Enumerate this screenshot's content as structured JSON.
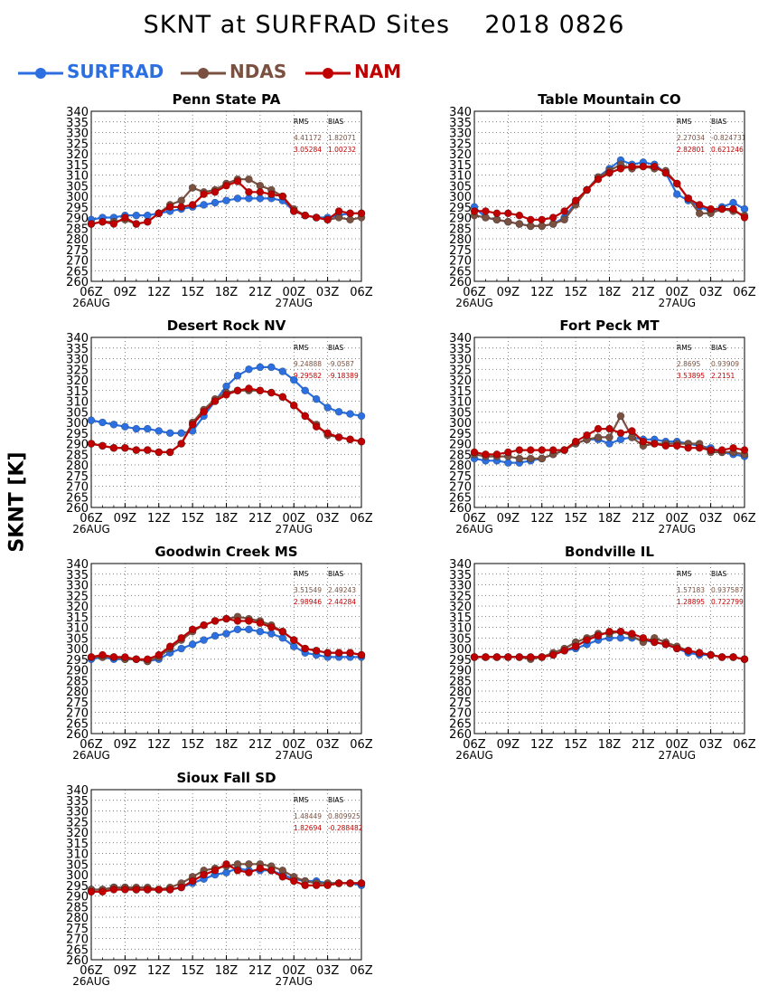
{
  "title": "SKNT at SURFRAD Sites    2018 0826",
  "ylabel": "SKNT [K]",
  "colors": {
    "SURFRAD": "#2b6fe0",
    "NDAS": "#7a5040",
    "NAM": "#c00000"
  },
  "legend": [
    {
      "name": "SURFRAD",
      "color": "#2b6fe0"
    },
    {
      "name": "NDAS",
      "color": "#7a5040"
    },
    {
      "name": "NAM",
      "color": "#c00000"
    }
  ],
  "chart_data": [
    {
      "type": "line",
      "title": "Penn State PA",
      "x": [
        "06Z",
        "07Z",
        "08Z",
        "09Z",
        "10Z",
        "11Z",
        "12Z",
        "13Z",
        "14Z",
        "15Z",
        "16Z",
        "17Z",
        "18Z",
        "19Z",
        "20Z",
        "21Z",
        "22Z",
        "23Z",
        "00Z",
        "01Z",
        "02Z",
        "03Z",
        "04Z",
        "05Z",
        "06Z"
      ],
      "xticks": [
        "06Z",
        "09Z",
        "12Z",
        "15Z",
        "18Z",
        "21Z",
        "00Z",
        "03Z",
        "06Z"
      ],
      "date_labels": [
        "26AUG",
        "27AUG"
      ],
      "ylim": [
        260,
        340
      ],
      "yticks": [
        260,
        265,
        270,
        275,
        280,
        285,
        290,
        295,
        300,
        305,
        310,
        315,
        320,
        325,
        330,
        335,
        340
      ],
      "grid": true,
      "stats": {
        "header": [
          "RMS",
          "BIAS"
        ],
        "NDAS": [
          "4.41172",
          "1.82071"
        ],
        "NAM": [
          "3.05284",
          "1.00232"
        ]
      },
      "series": [
        {
          "name": "SURFRAD",
          "values": [
            289,
            290,
            290,
            291,
            291,
            291,
            292,
            293,
            294,
            295,
            296,
            297,
            298,
            299,
            299,
            299,
            299,
            298,
            293,
            291,
            290,
            290,
            291,
            292,
            292
          ]
        },
        {
          "name": "NDAS",
          "values": [
            287,
            288,
            288,
            289,
            287,
            288,
            292,
            296,
            298,
            304,
            302,
            303,
            306,
            308,
            308,
            305,
            303,
            300,
            294,
            291,
            290,
            289,
            290,
            289,
            290
          ]
        },
        {
          "name": "NAM",
          "values": [
            287,
            288,
            287,
            290,
            287,
            288,
            292,
            295,
            295,
            296,
            301,
            302,
            305,
            307,
            302,
            302,
            301,
            300,
            293,
            291,
            290,
            289,
            293,
            292,
            292
          ]
        }
      ]
    },
    {
      "type": "line",
      "title": "Table Mountain CO",
      "x": [
        "06Z",
        "07Z",
        "08Z",
        "09Z",
        "10Z",
        "11Z",
        "12Z",
        "13Z",
        "14Z",
        "15Z",
        "16Z",
        "17Z",
        "18Z",
        "19Z",
        "20Z",
        "21Z",
        "22Z",
        "23Z",
        "00Z",
        "01Z",
        "02Z",
        "03Z",
        "04Z",
        "05Z",
        "06Z"
      ],
      "xticks": [
        "06Z",
        "09Z",
        "12Z",
        "15Z",
        "18Z",
        "21Z",
        "00Z",
        "03Z",
        "06Z"
      ],
      "date_labels": [
        "26AUG",
        "27AUG"
      ],
      "ylim": [
        260,
        340
      ],
      "yticks": [
        260,
        265,
        270,
        275,
        280,
        285,
        290,
        295,
        300,
        305,
        310,
        315,
        320,
        325,
        330,
        335,
        340
      ],
      "grid": true,
      "stats": {
        "header": [
          "RMS",
          "BIAS"
        ],
        "NDAS": [
          "2.27034",
          "-0.824731"
        ],
        "NAM": [
          "2.82801",
          "0.621246"
        ]
      },
      "series": [
        {
          "name": "SURFRAD",
          "values": [
            295,
            290,
            289,
            288,
            287,
            286,
            286,
            287,
            290,
            297,
            303,
            309,
            313,
            317,
            315,
            316,
            315,
            311,
            301,
            298,
            295,
            293,
            295,
            297,
            294
          ]
        },
        {
          "name": "NDAS",
          "values": [
            291,
            290,
            289,
            288,
            287,
            286,
            286,
            287,
            289,
            296,
            303,
            309,
            312,
            315,
            313,
            314,
            313,
            312,
            306,
            299,
            292,
            292,
            294,
            293,
            291
          ]
        },
        {
          "name": "NAM",
          "values": [
            293,
            293,
            292,
            292,
            291,
            289,
            289,
            290,
            293,
            298,
            303,
            308,
            311,
            313,
            314,
            314,
            314,
            311,
            306,
            299,
            296,
            294,
            294,
            294,
            290
          ]
        }
      ]
    },
    {
      "type": "line",
      "title": "Desert Rock NV",
      "x": [
        "06Z",
        "07Z",
        "08Z",
        "09Z",
        "10Z",
        "11Z",
        "12Z",
        "13Z",
        "14Z",
        "15Z",
        "16Z",
        "17Z",
        "18Z",
        "19Z",
        "20Z",
        "21Z",
        "22Z",
        "23Z",
        "00Z",
        "01Z",
        "02Z",
        "03Z",
        "04Z",
        "05Z",
        "06Z"
      ],
      "xticks": [
        "06Z",
        "09Z",
        "12Z",
        "15Z",
        "18Z",
        "21Z",
        "00Z",
        "03Z",
        "06Z"
      ],
      "date_labels": [
        "26AUG",
        "27AUG"
      ],
      "ylim": [
        260,
        340
      ],
      "yticks": [
        260,
        265,
        270,
        275,
        280,
        285,
        290,
        295,
        300,
        305,
        310,
        315,
        320,
        325,
        330,
        335,
        340
      ],
      "grid": true,
      "stats": {
        "header": [
          "RMS",
          "BIAS"
        ],
        "NDAS": [
          "9.24888",
          "-9.0587"
        ],
        "NAM": [
          "9.29582",
          "-9.18389"
        ]
      },
      "series": [
        {
          "name": "SURFRAD",
          "values": [
            301,
            300,
            299,
            298,
            297,
            297,
            296,
            295,
            295,
            296,
            303,
            310,
            317,
            322,
            325,
            326,
            326,
            324,
            320,
            315,
            311,
            307,
            305,
            304,
            303
          ]
        },
        {
          "name": "NDAS",
          "values": [
            290,
            289,
            288,
            288,
            287,
            287,
            286,
            286,
            290,
            300,
            306,
            311,
            314,
            315,
            315,
            315,
            314,
            312,
            308,
            303,
            299,
            294,
            293,
            292,
            291
          ]
        },
        {
          "name": "NAM",
          "values": [
            290,
            289,
            288,
            288,
            287,
            287,
            286,
            286,
            290,
            299,
            305,
            310,
            313,
            315,
            316,
            315,
            314,
            312,
            308,
            303,
            298,
            295,
            293,
            292,
            291
          ]
        }
      ]
    },
    {
      "type": "line",
      "title": "Fort Peck MT",
      "x": [
        "06Z",
        "07Z",
        "08Z",
        "09Z",
        "10Z",
        "11Z",
        "12Z",
        "13Z",
        "14Z",
        "15Z",
        "16Z",
        "17Z",
        "18Z",
        "19Z",
        "20Z",
        "21Z",
        "22Z",
        "23Z",
        "00Z",
        "01Z",
        "02Z",
        "03Z",
        "04Z",
        "05Z",
        "06Z"
      ],
      "xticks": [
        "06Z",
        "09Z",
        "12Z",
        "15Z",
        "18Z",
        "21Z",
        "00Z",
        "03Z",
        "06Z"
      ],
      "date_labels": [
        "26AUG",
        "27AUG"
      ],
      "ylim": [
        260,
        340
      ],
      "yticks": [
        260,
        265,
        270,
        275,
        280,
        285,
        290,
        295,
        300,
        305,
        310,
        315,
        320,
        325,
        330,
        335,
        340
      ],
      "grid": true,
      "stats": {
        "header": [
          "RMS",
          "BIAS"
        ],
        "NDAS": [
          "2.8695",
          "0.93909"
        ],
        "NAM": [
          "3.53895",
          "2.2151"
        ]
      },
      "series": [
        {
          "name": "SURFRAD",
          "values": [
            283,
            282,
            282,
            281,
            281,
            282,
            283,
            285,
            287,
            290,
            292,
            292,
            290,
            292,
            293,
            292,
            292,
            291,
            291,
            290,
            289,
            288,
            286,
            285,
            284
          ]
        },
        {
          "name": "NDAS",
          "values": [
            285,
            284,
            284,
            284,
            283,
            283,
            283,
            285,
            287,
            290,
            292,
            293,
            293,
            303,
            293,
            289,
            290,
            290,
            290,
            290,
            290,
            286,
            286,
            286,
            285
          ]
        },
        {
          "name": "NAM",
          "values": [
            286,
            285,
            285,
            286,
            287,
            287,
            287,
            287,
            287,
            291,
            294,
            297,
            297,
            295,
            296,
            291,
            290,
            289,
            289,
            288,
            288,
            287,
            287,
            288,
            287
          ]
        }
      ]
    },
    {
      "type": "line",
      "title": "Goodwin Creek MS",
      "x": [
        "06Z",
        "07Z",
        "08Z",
        "09Z",
        "10Z",
        "11Z",
        "12Z",
        "13Z",
        "14Z",
        "15Z",
        "16Z",
        "17Z",
        "18Z",
        "19Z",
        "20Z",
        "21Z",
        "22Z",
        "23Z",
        "00Z",
        "01Z",
        "02Z",
        "03Z",
        "04Z",
        "05Z",
        "06Z"
      ],
      "xticks": [
        "06Z",
        "09Z",
        "12Z",
        "15Z",
        "18Z",
        "21Z",
        "00Z",
        "03Z",
        "06Z"
      ],
      "date_labels": [
        "26AUG",
        "27AUG"
      ],
      "ylim": [
        260,
        340
      ],
      "yticks": [
        260,
        265,
        270,
        275,
        280,
        285,
        290,
        295,
        300,
        305,
        310,
        315,
        320,
        325,
        330,
        335,
        340
      ],
      "grid": true,
      "stats": {
        "header": [
          "RMS",
          "BIAS"
        ],
        "NDAS": [
          "3.51549",
          "2.49243"
        ],
        "NAM": [
          "2.98946",
          "2.44284"
        ]
      },
      "series": [
        {
          "name": "SURFRAD",
          "values": [
            295,
            296,
            295,
            295,
            295,
            294,
            295,
            298,
            300,
            302,
            304,
            306,
            307,
            309,
            309,
            308,
            307,
            305,
            301,
            298,
            297,
            296,
            296,
            296,
            296
          ]
        },
        {
          "name": "NDAS",
          "values": [
            296,
            296,
            296,
            295,
            295,
            294,
            296,
            300,
            304,
            308,
            311,
            313,
            314,
            315,
            314,
            313,
            311,
            308,
            304,
            300,
            299,
            298,
            298,
            298,
            297
          ]
        },
        {
          "name": "NAM",
          "values": [
            296,
            297,
            296,
            296,
            295,
            295,
            297,
            301,
            305,
            309,
            311,
            313,
            314,
            313,
            313,
            312,
            310,
            308,
            304,
            300,
            299,
            298,
            298,
            298,
            297
          ]
        }
      ]
    },
    {
      "type": "line",
      "title": "Bondville IL",
      "x": [
        "06Z",
        "07Z",
        "08Z",
        "09Z",
        "10Z",
        "11Z",
        "12Z",
        "13Z",
        "14Z",
        "15Z",
        "16Z",
        "17Z",
        "18Z",
        "19Z",
        "20Z",
        "21Z",
        "22Z",
        "23Z",
        "00Z",
        "01Z",
        "02Z",
        "03Z",
        "04Z",
        "05Z",
        "06Z"
      ],
      "xticks": [
        "06Z",
        "09Z",
        "12Z",
        "15Z",
        "18Z",
        "21Z",
        "00Z",
        "03Z",
        "06Z"
      ],
      "date_labels": [
        "26AUG",
        "27AUG"
      ],
      "ylim": [
        260,
        340
      ],
      "yticks": [
        260,
        265,
        270,
        275,
        280,
        285,
        290,
        295,
        300,
        305,
        310,
        315,
        320,
        325,
        330,
        335,
        340
      ],
      "grid": true,
      "stats": {
        "header": [
          "RMS",
          "BIAS"
        ],
        "NDAS": [
          "1.57183",
          "0.937587"
        ],
        "NAM": [
          "1.28895",
          "0.722799"
        ]
      },
      "series": [
        {
          "name": "SURFRAD",
          "values": [
            296,
            296,
            296,
            296,
            296,
            296,
            296,
            297,
            299,
            300,
            302,
            304,
            305,
            305,
            305,
            304,
            303,
            302,
            300,
            298,
            297,
            297,
            296,
            296,
            295
          ]
        },
        {
          "name": "NDAS",
          "values": [
            296,
            296,
            296,
            296,
            296,
            295,
            296,
            298,
            300,
            303,
            305,
            307,
            307,
            308,
            306,
            303,
            305,
            303,
            301,
            299,
            298,
            297,
            296,
            296,
            295
          ]
        },
        {
          "name": "NAM",
          "values": [
            296,
            296,
            296,
            296,
            296,
            296,
            296,
            297,
            299,
            301,
            304,
            306,
            308,
            308,
            307,
            305,
            303,
            302,
            300,
            299,
            298,
            297,
            296,
            296,
            295
          ]
        }
      ]
    },
    {
      "type": "line",
      "title": "Sioux Fall SD",
      "x": [
        "06Z",
        "07Z",
        "08Z",
        "09Z",
        "10Z",
        "11Z",
        "12Z",
        "13Z",
        "14Z",
        "15Z",
        "16Z",
        "17Z",
        "18Z",
        "19Z",
        "20Z",
        "21Z",
        "22Z",
        "23Z",
        "00Z",
        "01Z",
        "02Z",
        "03Z",
        "04Z",
        "05Z",
        "06Z"
      ],
      "xticks": [
        "06Z",
        "09Z",
        "12Z",
        "15Z",
        "18Z",
        "21Z",
        "00Z",
        "03Z",
        "06Z"
      ],
      "date_labels": [
        "26AUG",
        "27AUG"
      ],
      "ylim": [
        260,
        340
      ],
      "yticks": [
        260,
        265,
        270,
        275,
        280,
        285,
        290,
        295,
        300,
        305,
        310,
        315,
        320,
        325,
        330,
        335,
        340
      ],
      "grid": true,
      "stats": {
        "header": [
          "RMS",
          "BIAS"
        ],
        "NDAS": [
          "1.48449",
          "0.809925"
        ],
        "NAM": [
          "1.82694",
          "-0.288482"
        ]
      },
      "series": [
        {
          "name": "SURFRAD",
          "values": [
            293,
            293,
            294,
            294,
            293,
            293,
            293,
            293,
            294,
            296,
            298,
            300,
            301,
            303,
            302,
            302,
            302,
            300,
            298,
            297,
            297,
            296,
            296,
            296,
            295
          ]
        },
        {
          "name": "NDAS",
          "values": [
            293,
            293,
            294,
            294,
            294,
            294,
            293,
            294,
            296,
            299,
            302,
            303,
            304,
            305,
            305,
            305,
            304,
            302,
            299,
            297,
            296,
            296,
            296,
            296,
            296
          ]
        },
        {
          "name": "NAM",
          "values": [
            292,
            292,
            293,
            293,
            293,
            293,
            293,
            293,
            294,
            297,
            300,
            302,
            305,
            302,
            301,
            303,
            302,
            299,
            297,
            295,
            295,
            295,
            296,
            296,
            296
          ]
        }
      ]
    }
  ]
}
